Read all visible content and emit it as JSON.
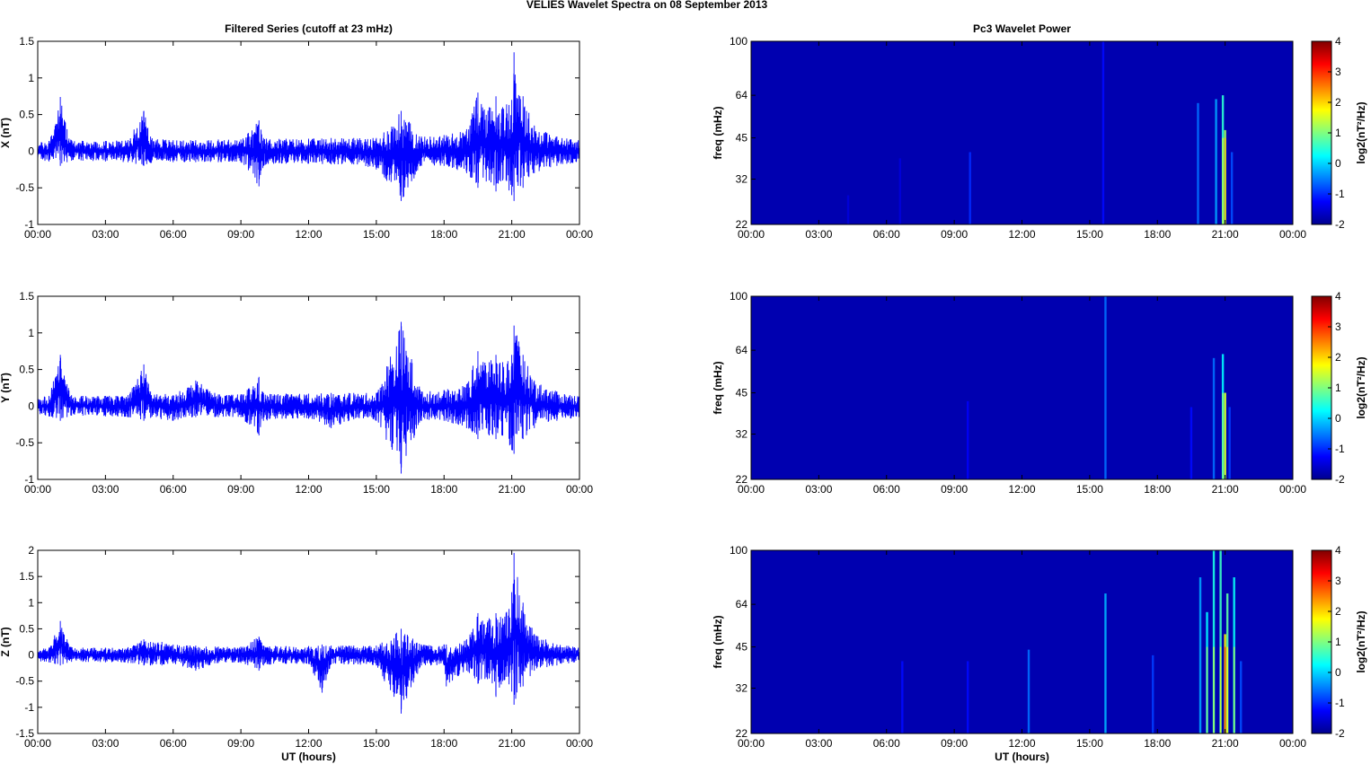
{
  "figure_title": "VELIES Wavelet Spectra on 08 September 2013",
  "colors": {
    "trace": "#0000ff",
    "spectrogram_background": "#0000b0"
  },
  "chart_data": [
    {
      "type": "line",
      "panel": "x-series",
      "title": "Filtered Series (cutoff at 23 mHz)",
      "xlabel": "",
      "ylabel": "X (nT)",
      "x_ticks": [
        "00:00",
        "03:00",
        "06:00",
        "09:00",
        "12:00",
        "15:00",
        "18:00",
        "21:00",
        "00:00"
      ],
      "y_ticks": [
        "-1",
        "-0.5",
        "0",
        "0.5",
        "1",
        "1.5"
      ],
      "xlim_hours": [
        0,
        24
      ],
      "ylim": [
        -1,
        1.5
      ],
      "series": [
        {
          "color": "#0000ff",
          "x_hours": [
            0,
            0.5,
            1,
            1.3,
            1.5,
            2,
            3,
            4,
            4.7,
            5,
            6,
            7,
            8,
            9,
            9.8,
            10,
            11,
            12,
            13,
            14,
            15,
            16.1,
            17,
            18,
            19,
            19.5,
            20,
            20.3,
            20.6,
            21,
            21.1,
            21.5,
            22,
            23,
            24
          ],
          "upper": [
            0.12,
            0.14,
            0.74,
            0.3,
            0.15,
            0.14,
            0.14,
            0.15,
            0.55,
            0.2,
            0.15,
            0.15,
            0.16,
            0.16,
            0.42,
            0.18,
            0.17,
            0.17,
            0.18,
            0.18,
            0.18,
            0.55,
            0.2,
            0.22,
            0.3,
            0.8,
            0.6,
            0.75,
            0.6,
            0.7,
            1.35,
            0.75,
            0.35,
            0.2,
            0.15
          ],
          "lower": [
            -0.12,
            -0.14,
            -0.2,
            -0.15,
            -0.13,
            -0.13,
            -0.14,
            -0.15,
            -0.2,
            -0.16,
            -0.15,
            -0.15,
            -0.15,
            -0.15,
            -0.48,
            -0.2,
            -0.17,
            -0.17,
            -0.18,
            -0.18,
            -0.25,
            -0.68,
            -0.2,
            -0.2,
            -0.3,
            -0.5,
            -0.4,
            -0.55,
            -0.4,
            -0.6,
            -0.68,
            -0.5,
            -0.3,
            -0.2,
            -0.15
          ]
        }
      ]
    },
    {
      "type": "line",
      "panel": "y-series",
      "title": "",
      "xlabel": "",
      "ylabel": "Y (nT)",
      "x_ticks": [
        "00:00",
        "03:00",
        "06:00",
        "09:00",
        "12:00",
        "15:00",
        "18:00",
        "21:00",
        "00:00"
      ],
      "y_ticks": [
        "-1",
        "-0.5",
        "0",
        "0.5",
        "1",
        "1.5"
      ],
      "xlim_hours": [
        0,
        24
      ],
      "ylim": [
        -1,
        1.5
      ],
      "series": [
        {
          "color": "#0000ff",
          "x_hours": [
            0,
            0.5,
            1,
            1.3,
            1.5,
            2,
            3,
            4,
            4.7,
            5,
            6,
            7,
            8,
            9,
            9.8,
            10,
            11,
            12,
            13,
            14,
            15,
            16.1,
            17,
            18,
            19,
            19.5,
            20,
            20.3,
            20.6,
            21,
            21.1,
            21.5,
            22,
            23,
            24
          ],
          "upper": [
            0.12,
            0.14,
            0.7,
            0.3,
            0.15,
            0.14,
            0.14,
            0.15,
            0.57,
            0.2,
            0.15,
            0.35,
            0.16,
            0.16,
            0.4,
            0.18,
            0.17,
            0.17,
            0.18,
            0.18,
            0.18,
            1.15,
            0.2,
            0.22,
            0.3,
            0.75,
            0.6,
            0.7,
            0.6,
            0.7,
            1.1,
            0.7,
            0.35,
            0.2,
            0.15
          ],
          "lower": [
            -0.12,
            -0.14,
            -0.2,
            -0.15,
            -0.13,
            -0.13,
            -0.14,
            -0.15,
            -0.2,
            -0.16,
            -0.2,
            -0.15,
            -0.15,
            -0.15,
            -0.4,
            -0.2,
            -0.17,
            -0.17,
            -0.3,
            -0.18,
            -0.2,
            -0.92,
            -0.2,
            -0.2,
            -0.3,
            -0.45,
            -0.4,
            -0.45,
            -0.4,
            -0.6,
            -0.65,
            -0.45,
            -0.3,
            -0.2,
            -0.15
          ]
        }
      ]
    },
    {
      "type": "line",
      "panel": "z-series",
      "title": "",
      "xlabel": "UT (hours)",
      "ylabel": "Z (nT)",
      "x_ticks": [
        "00:00",
        "03:00",
        "06:00",
        "09:00",
        "12:00",
        "15:00",
        "18:00",
        "21:00",
        "00:00"
      ],
      "y_ticks": [
        "-1.5",
        "-1",
        "-0.5",
        "0",
        "0.5",
        "1",
        "1.5",
        "2"
      ],
      "xlim_hours": [
        0,
        24
      ],
      "ylim": [
        -1.5,
        2
      ],
      "series": [
        {
          "color": "#0000ff",
          "x_hours": [
            0,
            0.5,
            1,
            1.3,
            1.5,
            2,
            3,
            4,
            4.7,
            5,
            5.5,
            6,
            7,
            8,
            9,
            9.8,
            10,
            11,
            12,
            12.6,
            13,
            14,
            15,
            16.1,
            17,
            18,
            18.1,
            19,
            19.5,
            20,
            20.3,
            20.6,
            21,
            21.1,
            21.5,
            22,
            23,
            24
          ],
          "upper": [
            0.12,
            0.14,
            0.65,
            0.3,
            0.15,
            0.14,
            0.14,
            0.15,
            0.3,
            0.25,
            0.25,
            0.2,
            0.18,
            0.16,
            0.16,
            0.35,
            0.18,
            0.17,
            0.17,
            0.2,
            0.18,
            0.18,
            0.18,
            0.5,
            0.2,
            0.2,
            0.2,
            0.3,
            0.8,
            0.7,
            0.8,
            0.7,
            1.2,
            1.95,
            1.0,
            0.4,
            0.2,
            0.15
          ],
          "lower": [
            -0.12,
            -0.14,
            -0.2,
            -0.15,
            -0.13,
            -0.13,
            -0.14,
            -0.15,
            -0.2,
            -0.2,
            -0.2,
            -0.16,
            -0.3,
            -0.15,
            -0.15,
            -0.3,
            -0.2,
            -0.17,
            -0.17,
            -0.72,
            -0.18,
            -0.18,
            -0.2,
            -1.12,
            -0.2,
            -0.2,
            -0.6,
            -0.3,
            -0.55,
            -0.45,
            -0.8,
            -0.5,
            -0.7,
            -0.95,
            -0.6,
            -0.3,
            -0.2,
            -0.15
          ]
        }
      ]
    },
    {
      "type": "heatmap",
      "panel": "x-power",
      "title": "Pc3 Wavelet Power",
      "xlabel": "",
      "ylabel": "freq (mHz)",
      "y_ticks": [
        "22",
        "32",
        "45",
        "64",
        "100"
      ],
      "x_ticks": [
        "00:00",
        "03:00",
        "06:00",
        "09:00",
        "12:00",
        "15:00",
        "18:00",
        "21:00",
        "00:00"
      ],
      "colorbar_label": "log2(nT²/Hz)",
      "colorbar_ticks": [
        "-2",
        "-1",
        "0",
        "1",
        "2",
        "3",
        "4"
      ],
      "clim": [
        -2,
        4
      ],
      "events": [
        {
          "hour": 4.3,
          "f_low": 22,
          "f_high": 28,
          "level": -1.5
        },
        {
          "hour": 6.6,
          "f_low": 22,
          "f_high": 38,
          "level": -1.5
        },
        {
          "hour": 9.7,
          "f_low": 22,
          "f_high": 40,
          "level": -1.0
        },
        {
          "hour": 15.6,
          "f_low": 22,
          "f_high": 100,
          "level": -1.2
        },
        {
          "hour": 19.8,
          "f_low": 22,
          "f_high": 60,
          "level": -0.6
        },
        {
          "hour": 20.6,
          "f_low": 22,
          "f_high": 62,
          "level": -0.3
        },
        {
          "hour": 20.9,
          "f_low": 22,
          "f_high": 64,
          "level": 0.5
        },
        {
          "hour": 21.0,
          "f_low": 22,
          "f_high": 48,
          "level": 1.2
        },
        {
          "hour": 21.3,
          "f_low": 22,
          "f_high": 40,
          "level": -0.8
        }
      ]
    },
    {
      "type": "heatmap",
      "panel": "y-power",
      "title": "",
      "xlabel": "",
      "ylabel": "freq (mHz)",
      "y_ticks": [
        "22",
        "32",
        "45",
        "64",
        "100"
      ],
      "x_ticks": [
        "00:00",
        "03:00",
        "06:00",
        "09:00",
        "12:00",
        "15:00",
        "18:00",
        "21:00",
        "00:00"
      ],
      "colorbar_label": "log2(nT²/Hz)",
      "colorbar_ticks": [
        "-2",
        "-1",
        "0",
        "1",
        "2",
        "3",
        "4"
      ],
      "clim": [
        -2,
        4
      ],
      "events": [
        {
          "hour": 9.6,
          "f_low": 22,
          "f_high": 42,
          "level": -1.3
        },
        {
          "hour": 15.7,
          "f_low": 22,
          "f_high": 100,
          "level": -0.6
        },
        {
          "hour": 19.5,
          "f_low": 22,
          "f_high": 40,
          "level": -1.2
        },
        {
          "hour": 20.5,
          "f_low": 22,
          "f_high": 60,
          "level": -0.6
        },
        {
          "hour": 20.9,
          "f_low": 22,
          "f_high": 62,
          "level": 0.2
        },
        {
          "hour": 21.0,
          "f_low": 22,
          "f_high": 45,
          "level": 0.9
        },
        {
          "hour": 21.2,
          "f_low": 22,
          "f_high": 40,
          "level": -0.9
        }
      ]
    },
    {
      "type": "heatmap",
      "panel": "z-power",
      "title": "",
      "xlabel": "UT (hours)",
      "ylabel": "freq (mHz)",
      "y_ticks": [
        "22",
        "32",
        "45",
        "64",
        "100"
      ],
      "x_ticks": [
        "00:00",
        "03:00",
        "06:00",
        "09:00",
        "12:00",
        "15:00",
        "18:00",
        "21:00",
        "00:00"
      ],
      "colorbar_label": "log2(nT²/Hz)",
      "colorbar_ticks": [
        "-2",
        "-1",
        "0",
        "1",
        "2",
        "3",
        "4"
      ],
      "clim": [
        -2,
        4
      ],
      "events": [
        {
          "hour": 6.7,
          "f_low": 22,
          "f_high": 40,
          "level": -1.2
        },
        {
          "hour": 9.6,
          "f_low": 22,
          "f_high": 40,
          "level": -1.2
        },
        {
          "hour": 12.3,
          "f_low": 22,
          "f_high": 44,
          "level": -0.6
        },
        {
          "hour": 15.7,
          "f_low": 22,
          "f_high": 70,
          "level": -0.2
        },
        {
          "hour": 17.8,
          "f_low": 22,
          "f_high": 42,
          "level": -0.9
        },
        {
          "hour": 19.9,
          "f_low": 22,
          "f_high": 80,
          "level": -0.3
        },
        {
          "hour": 20.2,
          "f_low": 22,
          "f_high": 60,
          "level": 0.2
        },
        {
          "hour": 20.5,
          "f_low": 22,
          "f_high": 100,
          "level": 0.4
        },
        {
          "hour": 20.8,
          "f_low": 22,
          "f_high": 100,
          "level": 0.6
        },
        {
          "hour": 21.0,
          "f_low": 22,
          "f_high": 50,
          "level": 1.8
        },
        {
          "hour": 21.1,
          "f_low": 22,
          "f_high": 70,
          "level": 0.8
        },
        {
          "hour": 21.4,
          "f_low": 22,
          "f_high": 80,
          "level": 0.3
        },
        {
          "hour": 21.7,
          "f_low": 22,
          "f_high": 40,
          "level": -0.8
        }
      ]
    }
  ]
}
